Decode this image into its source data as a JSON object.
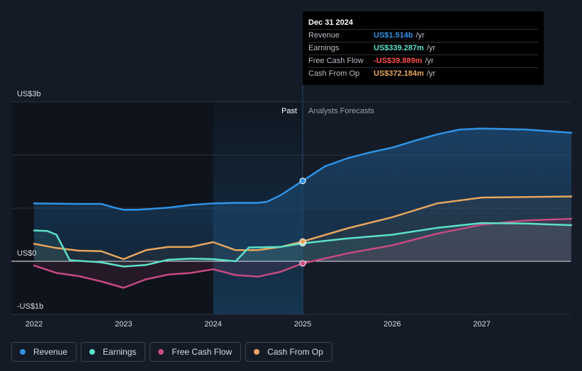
{
  "chart_data": {
    "type": "line",
    "title": "",
    "xlabel": "",
    "ylabel": "",
    "x_ticks": [
      2022,
      2023,
      2024,
      2025,
      2026,
      2027
    ],
    "x_tick_labels": [
      "2022",
      "2023",
      "2024",
      "2025",
      "2026",
      "2027"
    ],
    "xlim": [
      2021.9,
      2028.0
    ],
    "ylim": [
      -1.0,
      3.0
    ],
    "y_labels": [
      {
        "value": 3.0,
        "label": "US$3b"
      },
      {
        "value": 0.0,
        "label": "US$0"
      },
      {
        "value": -1.0,
        "label": "-US$1b"
      }
    ],
    "region_labels": {
      "past": "Past",
      "forecast": "Analysts Forecasts"
    },
    "highlight_range": [
      2024.0,
      2025.0
    ],
    "current_x": 2025.0,
    "series": [
      {
        "name": "Revenue",
        "color": "#2f93e6",
        "points": [
          [
            2022.0,
            1.09
          ],
          [
            2022.25,
            1.085
          ],
          [
            2022.5,
            1.08
          ],
          [
            2022.75,
            1.08
          ],
          [
            2022.9,
            1.01
          ],
          [
            2023.0,
            0.97
          ],
          [
            2023.15,
            0.97
          ],
          [
            2023.25,
            0.98
          ],
          [
            2023.5,
            1.01
          ],
          [
            2023.75,
            1.06
          ],
          [
            2024.0,
            1.09
          ],
          [
            2024.25,
            1.1
          ],
          [
            2024.5,
            1.1
          ],
          [
            2024.6,
            1.12
          ],
          [
            2024.75,
            1.24
          ],
          [
            2025.0,
            1.514
          ],
          [
            2025.25,
            1.79
          ],
          [
            2025.5,
            1.94
          ],
          [
            2025.75,
            2.05
          ],
          [
            2026.0,
            2.14
          ],
          [
            2026.25,
            2.27
          ],
          [
            2026.5,
            2.39
          ],
          [
            2026.75,
            2.48
          ],
          [
            2027.0,
            2.5
          ],
          [
            2027.5,
            2.48
          ],
          [
            2028.0,
            2.42
          ]
        ]
      },
      {
        "name": "Earnings",
        "color": "#5ee0c8",
        "points": [
          [
            2022.0,
            0.58
          ],
          [
            2022.15,
            0.57
          ],
          [
            2022.25,
            0.5
          ],
          [
            2022.4,
            0.02
          ],
          [
            2022.75,
            -0.02
          ],
          [
            2023.0,
            -0.1
          ],
          [
            2023.25,
            -0.07
          ],
          [
            2023.5,
            0.03
          ],
          [
            2023.75,
            0.05
          ],
          [
            2024.0,
            0.04
          ],
          [
            2024.25,
            0.0
          ],
          [
            2024.4,
            0.26
          ],
          [
            2024.75,
            0.27
          ],
          [
            2025.0,
            0.339
          ],
          [
            2025.5,
            0.43
          ],
          [
            2026.0,
            0.5
          ],
          [
            2026.5,
            0.63
          ],
          [
            2027.0,
            0.72
          ],
          [
            2027.5,
            0.71
          ],
          [
            2028.0,
            0.68
          ]
        ]
      },
      {
        "name": "Free Cash Flow",
        "color": "#c74a82",
        "points": [
          [
            2022.0,
            -0.08
          ],
          [
            2022.25,
            -0.22
          ],
          [
            2022.5,
            -0.28
          ],
          [
            2022.75,
            -0.38
          ],
          [
            2023.0,
            -0.5
          ],
          [
            2023.25,
            -0.34
          ],
          [
            2023.5,
            -0.25
          ],
          [
            2023.75,
            -0.22
          ],
          [
            2024.0,
            -0.15
          ],
          [
            2024.25,
            -0.26
          ],
          [
            2024.5,
            -0.29
          ],
          [
            2024.75,
            -0.2
          ],
          [
            2025.0,
            -0.04
          ],
          [
            2025.5,
            0.15
          ],
          [
            2026.0,
            0.3
          ],
          [
            2026.5,
            0.52
          ],
          [
            2027.0,
            0.69
          ],
          [
            2027.5,
            0.77
          ],
          [
            2028.0,
            0.8
          ]
        ]
      },
      {
        "name": "Cash From Op",
        "color": "#e7a65e",
        "points": [
          [
            2022.0,
            0.33
          ],
          [
            2022.25,
            0.25
          ],
          [
            2022.5,
            0.2
          ],
          [
            2022.75,
            0.19
          ],
          [
            2023.0,
            0.04
          ],
          [
            2023.25,
            0.21
          ],
          [
            2023.5,
            0.27
          ],
          [
            2023.75,
            0.27
          ],
          [
            2024.0,
            0.36
          ],
          [
            2024.25,
            0.21
          ],
          [
            2024.5,
            0.21
          ],
          [
            2024.75,
            0.27
          ],
          [
            2025.0,
            0.372
          ],
          [
            2025.5,
            0.62
          ],
          [
            2026.0,
            0.83
          ],
          [
            2026.5,
            1.09
          ],
          [
            2027.0,
            1.2
          ],
          [
            2027.5,
            1.21
          ],
          [
            2028.0,
            1.22
          ]
        ]
      }
    ]
  },
  "tooltip": {
    "date": "Dec 31 2024",
    "rows": [
      {
        "label": "Revenue",
        "value": "US$1.514b",
        "unit": "/yr",
        "color": "#2f93e6"
      },
      {
        "label": "Earnings",
        "value": "US$339.287m",
        "unit": "/yr",
        "color": "#5ee0c8"
      },
      {
        "label": "Free Cash Flow",
        "value": "-US$39.889m",
        "unit": "/yr",
        "color": "#ff4d4d"
      },
      {
        "label": "Cash From Op",
        "value": "US$372.184m",
        "unit": "/yr",
        "color": "#e7a65e"
      }
    ]
  },
  "legend": [
    {
      "label": "Revenue",
      "color": "#2f93e6"
    },
    {
      "label": "Earnings",
      "color": "#5ee0c8"
    },
    {
      "label": "Free Cash Flow",
      "color": "#c74a82"
    },
    {
      "label": "Cash From Op",
      "color": "#e7a65e"
    }
  ]
}
